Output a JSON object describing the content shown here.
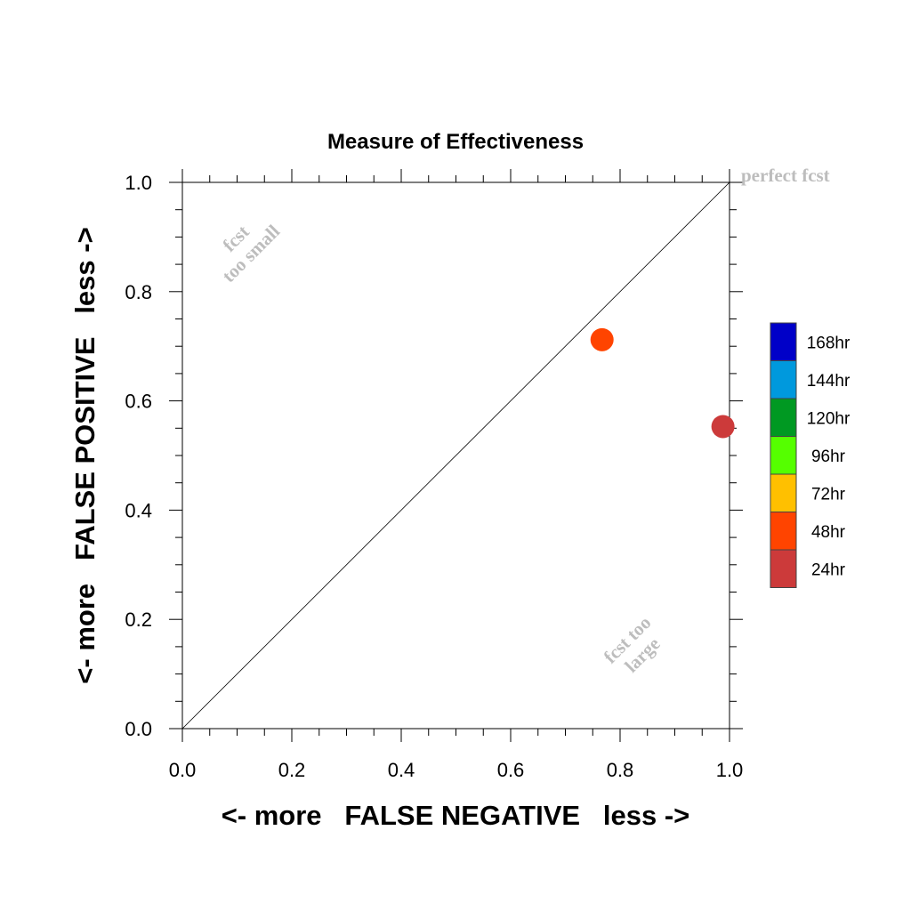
{
  "chart_data": {
    "type": "scatter",
    "title": "Measure of Effectiveness",
    "xlabel": "<- more   FALSE NEGATIVE   less ->",
    "ylabel": "<- more   FALSE POSITIVE   less ->",
    "xlim": [
      0.0,
      1.0
    ],
    "ylim": [
      0.0,
      1.0
    ],
    "x_ticks": [
      "0.0",
      "0.2",
      "0.4",
      "0.6",
      "0.8",
      "1.0"
    ],
    "y_ticks": [
      "0.0",
      "0.2",
      "0.4",
      "0.6",
      "0.8",
      "1.0"
    ],
    "reference_line": {
      "from": [
        0,
        0
      ],
      "to": [
        1,
        1
      ]
    },
    "annotations": {
      "perfect": "perfect fcst",
      "too_small": [
        "fcst",
        "too small"
      ],
      "too_large": [
        "fcst too",
        "large"
      ]
    },
    "legend": [
      {
        "label": "168hr",
        "color": "#0000c8"
      },
      {
        "label": "144hr",
        "color": "#0099dd"
      },
      {
        "label": "120hr",
        "color": "#009922"
      },
      {
        "label": "96hr",
        "color": "#55ff00"
      },
      {
        "label": "72hr",
        "color": "#ffc000"
      },
      {
        "label": "48hr",
        "color": "#ff4400"
      },
      {
        "label": "24hr",
        "color": "#cc3a3a"
      }
    ],
    "points": [
      {
        "label": "48hr",
        "x": 0.767,
        "y": 0.712,
        "color": "#ff4400"
      },
      {
        "label": "24hr",
        "x": 0.988,
        "y": 0.553,
        "color": "#cc3a3a"
      }
    ]
  }
}
